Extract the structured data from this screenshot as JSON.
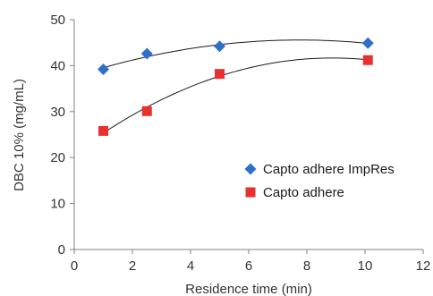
{
  "chart_data": {
    "type": "scatter",
    "xlabel": "Residence time (min)",
    "ylabel": "DBC 10% (mg/mL)",
    "xlim": [
      0,
      12
    ],
    "ylim": [
      0,
      50
    ],
    "x_ticks": [
      "0",
      "2",
      "4",
      "6",
      "8",
      "10",
      "12"
    ],
    "y_ticks": [
      "0",
      "10",
      "20",
      "30",
      "40",
      "50"
    ],
    "grid": false,
    "legend_position": "right",
    "trendlines": true,
    "series": [
      {
        "name": "Capto adhere ImpRes",
        "marker": "diamond",
        "color": "#2e6fc9",
        "x": [
          1.0,
          2.5,
          5.0,
          10.1
        ],
        "y": [
          39.2,
          42.6,
          44.2,
          44.9
        ]
      },
      {
        "name": "Capto adhere",
        "marker": "square",
        "color": "#e8312f",
        "x": [
          1.0,
          2.5,
          5.0,
          10.1
        ],
        "y": [
          25.8,
          30.1,
          38.2,
          41.2
        ]
      }
    ]
  }
}
